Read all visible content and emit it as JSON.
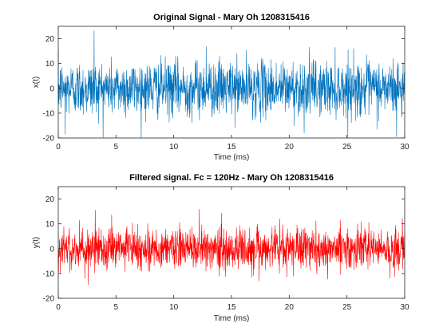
{
  "chart_data": [
    {
      "type": "line",
      "title": "Original Signal - Mary Oh 1208315416",
      "xlabel": "Time (ms)",
      "ylabel": "x(t)",
      "xlim": [
        0,
        30
      ],
      "ylim": [
        -20,
        25
      ],
      "xticks": [
        0,
        5,
        10,
        15,
        20,
        25,
        30
      ],
      "xtick_labels": [
        "0",
        "5",
        "10",
        "15",
        "20",
        "25",
        "30"
      ],
      "yticks": [
        -20,
        -10,
        0,
        10,
        20
      ],
      "ytick_labels": [
        "-20",
        "-10",
        "0",
        "10",
        "20"
      ],
      "grid": false,
      "color": "#0072BD",
      "series": [
        {
          "noise_amplitude": 5.5,
          "x_range": [
            0,
            30
          ],
          "samples": 1500,
          "peaks": [
            {
              "x": 3.1,
              "y": 23.2
            },
            {
              "x": 0.6,
              "y": -18.5
            },
            {
              "x": 29.3,
              "y": -19.5
            },
            {
              "x": 12.8,
              "y": 16.8
            },
            {
              "x": 21.3,
              "y": -18.0
            },
            {
              "x": 25.1,
              "y": 15.5
            }
          ]
        }
      ]
    },
    {
      "type": "line",
      "title": "Filtered signal. Fc = 120Hz - Mary Oh 1208315416",
      "xlabel": "Time (ms)",
      "ylabel": "y(t)",
      "xlim": [
        0,
        30
      ],
      "ylim": [
        -20,
        25
      ],
      "xticks": [
        0,
        5,
        10,
        15,
        20,
        25,
        30
      ],
      "xtick_labels": [
        "0",
        "5",
        "10",
        "15",
        "20",
        "25",
        "30"
      ],
      "yticks": [
        -20,
        -10,
        0,
        10,
        20
      ],
      "ytick_labels": [
        "-20",
        "-10",
        "0",
        "10",
        "20"
      ],
      "grid": false,
      "color": "#FF0000",
      "series": [
        {
          "noise_amplitude": 4.2,
          "x_range": [
            0,
            30
          ],
          "samples": 1500,
          "peaks": [
            {
              "x": 3.2,
              "y": 15.5
            },
            {
              "x": 2.6,
              "y": -14.5
            },
            {
              "x": 29.8,
              "y": 12.2
            },
            {
              "x": 19.2,
              "y": 12.0
            },
            {
              "x": 17.4,
              "y": -13.0
            }
          ]
        }
      ]
    }
  ]
}
